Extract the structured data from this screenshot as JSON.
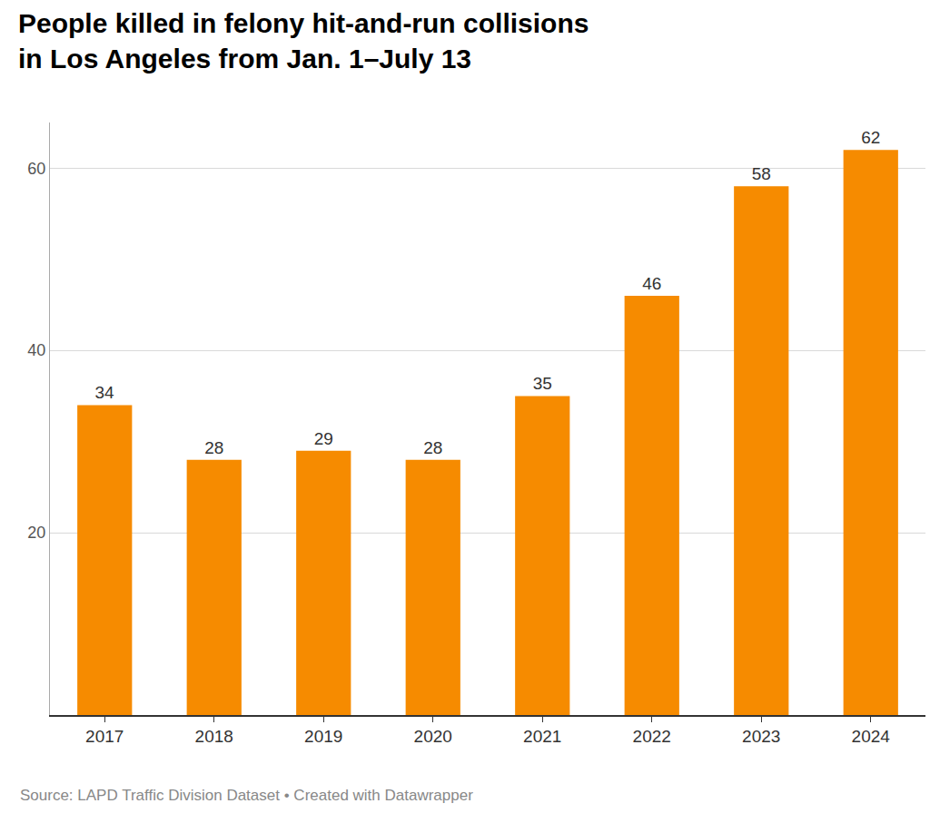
{
  "chart_data": {
    "type": "bar",
    "title": "People killed in felony hit-and-run collisions in Los Angeles from Jan. 1–July 13",
    "categories": [
      "2017",
      "2018",
      "2019",
      "2020",
      "2021",
      "2022",
      "2023",
      "2024"
    ],
    "values": [
      34,
      28,
      29,
      28,
      35,
      46,
      58,
      62
    ],
    "color": "#f68b00",
    "ylim": [
      0,
      65
    ],
    "yticks": [
      20,
      40,
      60
    ],
    "grid": true,
    "data_labels": true,
    "source": "Source: LAPD Traffic Division Dataset • Created with Datawrapper"
  }
}
